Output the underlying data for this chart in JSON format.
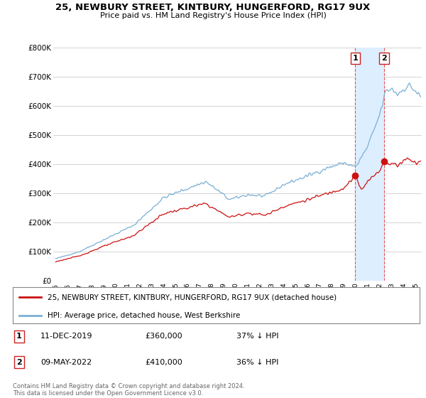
{
  "title": "25, NEWBURY STREET, KINTBURY, HUNGERFORD, RG17 9UX",
  "subtitle": "Price paid vs. HM Land Registry's House Price Index (HPI)",
  "ylim": [
    0,
    800000
  ],
  "yticks": [
    0,
    100000,
    200000,
    300000,
    400000,
    500000,
    600000,
    700000,
    800000
  ],
  "ytick_labels": [
    "£0",
    "£100K",
    "£200K",
    "£300K",
    "£400K",
    "£500K",
    "£600K",
    "£700K",
    "£800K"
  ],
  "hpi_color": "#7bafd4",
  "price_color": "#cc1111",
  "legend_entry1": "25, NEWBURY STREET, KINTBURY, HUNGERFORD, RG17 9UX (detached house)",
  "legend_entry2": "HPI: Average price, detached house, West Berkshire",
  "footer": "Contains HM Land Registry data © Crown copyright and database right 2024.\nThis data is licensed under the Open Government Licence v3.0.",
  "background_color": "#ffffff",
  "grid_color": "#cccccc",
  "marker1_x": 2019.95,
  "marker1_y": 360000,
  "marker2_x": 2022.37,
  "marker2_y": 410000,
  "xlim_left": 1994.8,
  "xlim_right": 2025.5,
  "xtick_years": [
    1995,
    1996,
    1997,
    1998,
    1999,
    2000,
    2001,
    2002,
    2003,
    2004,
    2005,
    2006,
    2007,
    2008,
    2009,
    2010,
    2011,
    2012,
    2013,
    2014,
    2015,
    2016,
    2017,
    2018,
    2019,
    2020,
    2021,
    2022,
    2023,
    2024,
    2025
  ],
  "shade_color": "#ddeeff",
  "vline_color": "#ee5555"
}
